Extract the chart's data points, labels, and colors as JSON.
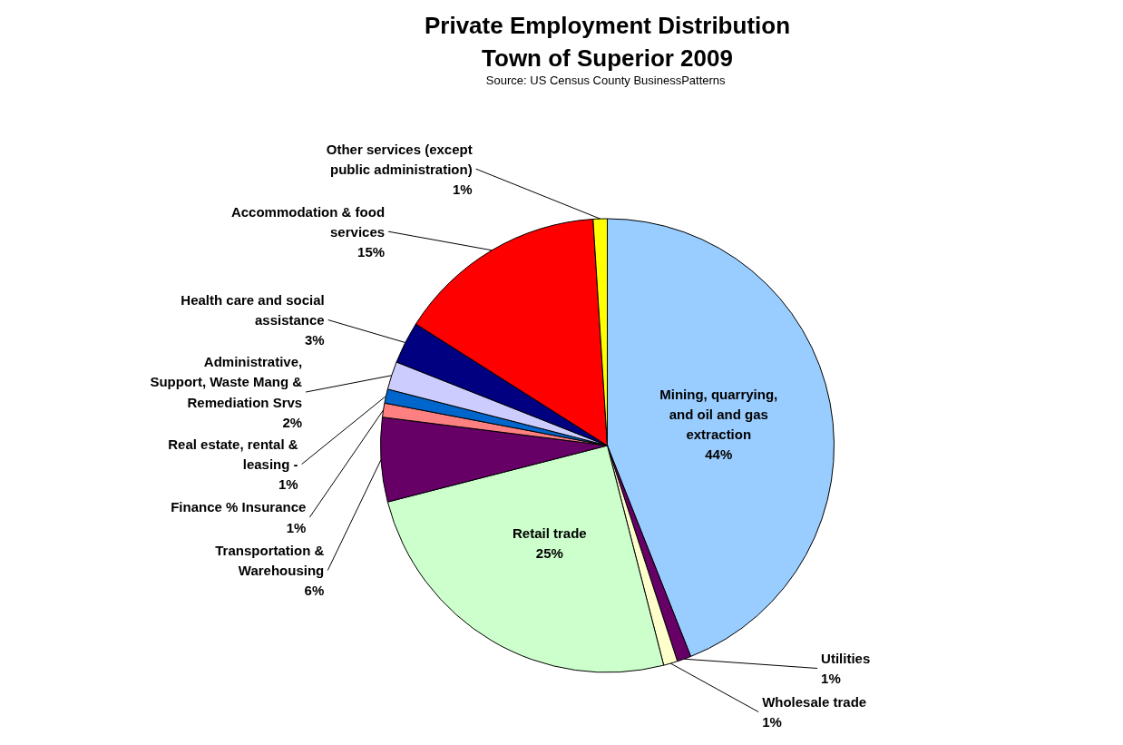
{
  "chart_data": {
    "type": "pie",
    "title": "Private Employment Distribution\nTown of Superior 2009",
    "subtitle": "Source: US Census  County BusinessPatterns",
    "categories": [
      "Mining, quarrying, and oil and gas extraction",
      "Utilities",
      "Wholesale trade",
      "Retail trade",
      "Transportation & Warehousing",
      "Finance % Insurance",
      "Real estate, rental & leasing -",
      "Administrative, Support, Waste Mang & Remediation Srvs",
      "Health care and social assistance",
      "Accommodation & food services",
      "Other services (except public administration)"
    ],
    "values": [
      44,
      1,
      1,
      25,
      6,
      1,
      1,
      2,
      3,
      15,
      1
    ],
    "value_labels": [
      "44%",
      "1%",
      "1%",
      "25%",
      "6%",
      "1%",
      "1%",
      "2%",
      "3%",
      "15%",
      "1%"
    ],
    "colors": [
      "#99ccff",
      "#660066",
      "#ffffcc",
      "#ccffcc",
      "#660066",
      "#ff8080",
      "#0066cc",
      "#ccccff",
      "#000080",
      "#ff0000",
      "#ffff00"
    ]
  }
}
